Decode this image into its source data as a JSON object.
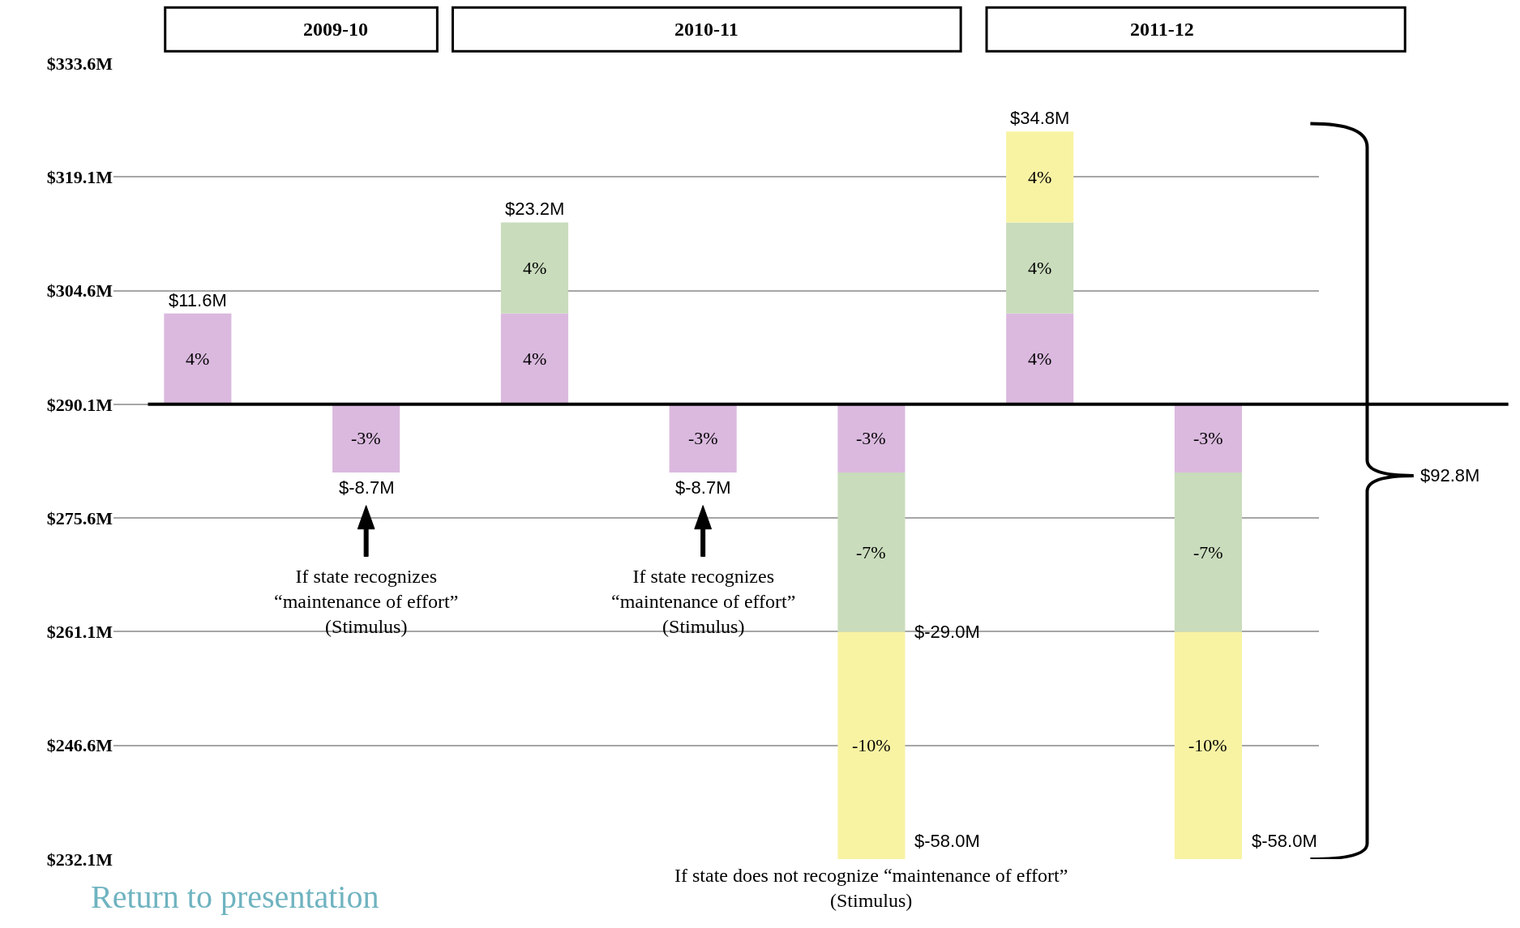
{
  "chart_data": {
    "type": "bar",
    "categories": [
      null,
      null,
      null,
      null,
      null,
      null,
      null
    ],
    "series": [
      {
        "color": "#dbb9df",
        "base": [
          290.1,
          290.1,
          290.1,
          290.1,
          290.1,
          290.1,
          290.1
        ],
        "values": [
          11.6,
          -8.7,
          11.6,
          -8.7,
          -8.7,
          11.6,
          -8.7
        ]
      },
      {
        "color": "#c9dcbc",
        "base": [
          null,
          null,
          301.7,
          null,
          281.4,
          301.7,
          281.4
        ],
        "values": [
          null,
          null,
          11.6,
          null,
          -20.3,
          11.6,
          -20.3
        ]
      },
      {
        "color": "#f8f3a3",
        "base": [
          null,
          null,
          null,
          null,
          261.1,
          313.3,
          261.1
        ],
        "values": [
          null,
          null,
          null,
          null,
          -29.0,
          11.6,
          -29.0
        ]
      }
    ],
    "ylim": [
      232.1,
      333.6
    ],
    "yticks": [
      {
        "value": 232.1,
        "label": "$232.1M"
      },
      {
        "value": 246.6,
        "label": "$246.6M"
      },
      {
        "value": 261.1,
        "label": "$261.1M"
      },
      {
        "value": 275.6,
        "label": "$275.6M"
      },
      {
        "value": 290.1,
        "label": "$290.1M"
      },
      {
        "value": 304.6,
        "label": "$304.6M"
      },
      {
        "value": 319.1,
        "label": "$319.1M"
      },
      {
        "value": 333.6,
        "label": "$333.6M"
      }
    ],
    "grid": "y",
    "ref_lines": [
      {
        "axis": "y",
        "value": 290.1,
        "color": "#000000"
      }
    ],
    "annotations": [
      "2009-10",
      "2010-11",
      "2011-12",
      "If state recognizes\n“maintenance of effort”\n(Stimulus)",
      "If state recognizes\n“maintenance of effort”\n(Stimulus)",
      "If state does not recognize “maintenance of effort”\n(Stimulus)",
      "$-29.0M",
      "$92.8M",
      "Return to presentation",
      "$11.6M",
      "$-8.7M",
      "$23.2M",
      "$-8.7M",
      "$-58.0M",
      "$34.8M",
      "$-58.0M",
      "4%",
      "-3%",
      "4%",
      "-3%",
      "-3%",
      "4%",
      "-3%",
      "4%",
      "-7%",
      "4%",
      "-7%",
      "-10%",
      "4%",
      "-10%"
    ]
  }
}
